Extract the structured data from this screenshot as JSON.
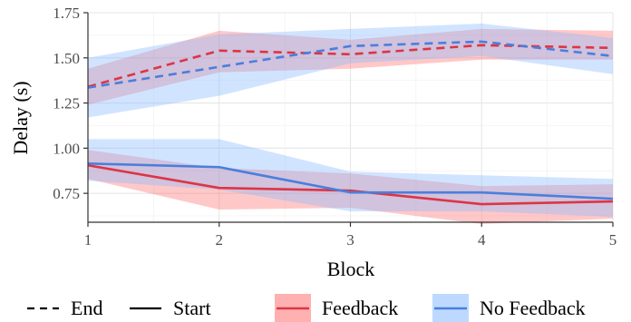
{
  "chart_data": {
    "type": "line",
    "xlabel": "Block",
    "ylabel": "Delay (s)",
    "xlim": [
      1,
      5
    ],
    "ylim": [
      0.59,
      1.75
    ],
    "x_ticks": [
      1,
      2,
      3,
      4,
      5
    ],
    "y_ticks": [
      0.75,
      1.0,
      1.25,
      1.5,
      1.75
    ],
    "y_tick_labels": [
      "0.75",
      "1.00",
      "1.25",
      "1.50",
      "1.75"
    ],
    "grid": true,
    "legend_position": "bottom",
    "colors": {
      "Feedback": {
        "line": "#dc3545",
        "band": "#ff6f6f"
      },
      "No Feedback": {
        "line": "#4a7fdc",
        "band": "#86b9ff"
      }
    },
    "x": [
      1,
      2,
      3,
      4,
      5
    ],
    "series": [
      {
        "name": "End",
        "group": "Feedback",
        "linetype": "dashed",
        "values": [
          1.34,
          1.54,
          1.52,
          1.57,
          1.555
        ],
        "lower": [
          1.24,
          1.42,
          1.44,
          1.49,
          1.49
        ],
        "upper": [
          1.44,
          1.65,
          1.6,
          1.66,
          1.65
        ]
      },
      {
        "name": "End",
        "group": "No Feedback",
        "linetype": "dashed",
        "values": [
          1.335,
          1.45,
          1.565,
          1.59,
          1.51
        ],
        "lower": [
          1.17,
          1.29,
          1.47,
          1.51,
          1.41
        ],
        "upper": [
          1.5,
          1.63,
          1.66,
          1.69,
          1.61
        ]
      },
      {
        "name": "Start",
        "group": "Feedback",
        "linetype": "solid",
        "values": [
          0.905,
          0.78,
          0.765,
          0.69,
          0.705
        ],
        "lower": [
          0.83,
          0.66,
          0.67,
          0.58,
          0.61
        ],
        "upper": [
          0.99,
          0.89,
          0.86,
          0.79,
          0.8
        ]
      },
      {
        "name": "Start",
        "group": "No Feedback",
        "linetype": "solid",
        "values": [
          0.915,
          0.895,
          0.755,
          0.755,
          0.72
        ],
        "lower": [
          0.82,
          0.77,
          0.65,
          0.65,
          0.62
        ],
        "upper": [
          1.05,
          1.05,
          0.87,
          0.85,
          0.83
        ]
      }
    ],
    "legend": {
      "linetype": [
        {
          "label": "End",
          "style": "dashed"
        },
        {
          "label": "Start",
          "style": "solid"
        }
      ],
      "group": [
        {
          "label": "Feedback"
        },
        {
          "label": "No Feedback"
        }
      ]
    }
  }
}
